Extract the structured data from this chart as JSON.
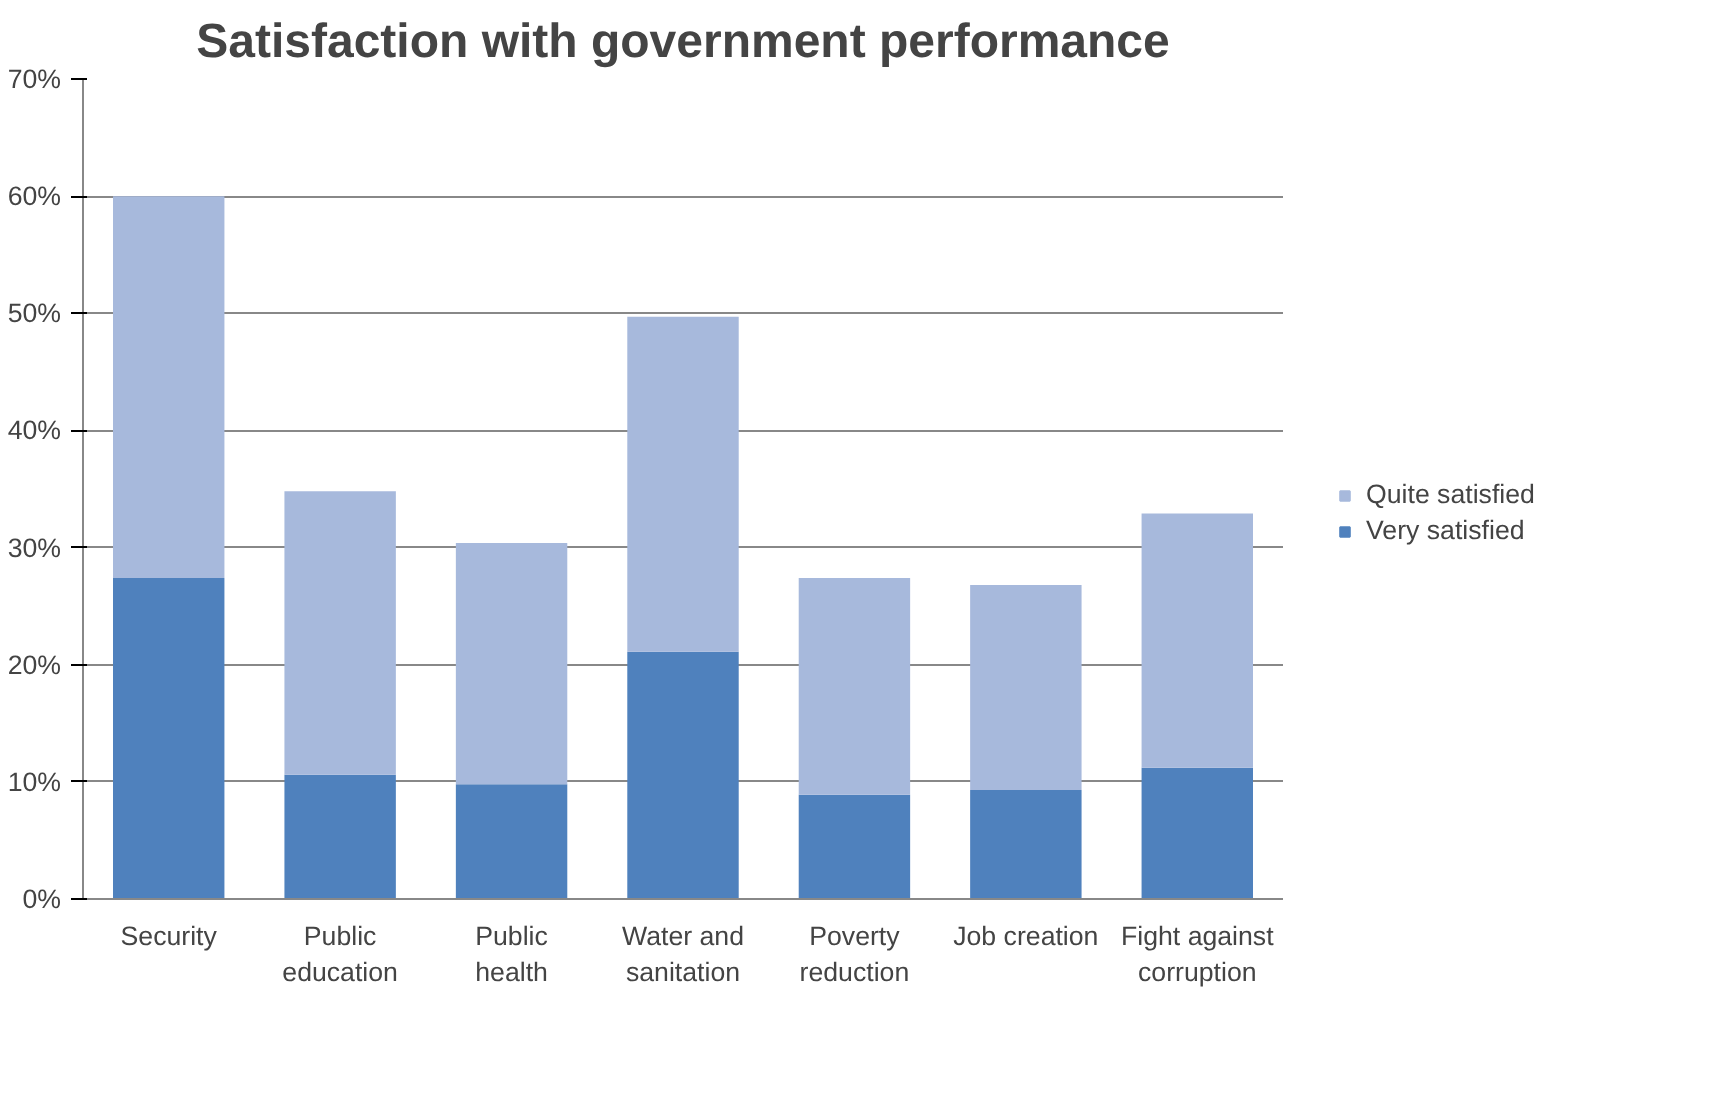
{
  "chart_data": {
    "type": "bar",
    "stacked": true,
    "title": "Satisfaction with government performance",
    "categories": [
      "Security",
      "Public education",
      "Public health",
      "Water and sanitation",
      "Poverty reduction",
      "Job creation",
      "Fight against corruption"
    ],
    "series": [
      {
        "name": "Very satisfied",
        "color": "#4f81bd",
        "values": [
          27.4,
          10.6,
          9.8,
          21.1,
          8.9,
          9.3,
          11.2
        ]
      },
      {
        "name": "Quite satisfied",
        "color": "#a7b9dc",
        "values": [
          32.6,
          24.2,
          20.6,
          28.6,
          18.5,
          17.5,
          21.7
        ]
      }
    ],
    "ylim": [
      0,
      70
    ],
    "yticks": [
      {
        "value": 0,
        "label": "0%"
      },
      {
        "value": 10,
        "label": "10%"
      },
      {
        "value": 20,
        "label": "20%"
      },
      {
        "value": 30,
        "label": "30%"
      },
      {
        "value": 40,
        "label": "40%"
      },
      {
        "value": 50,
        "label": "50%"
      },
      {
        "value": 60,
        "label": "60%"
      },
      {
        "value": 70,
        "label": "70%"
      }
    ],
    "grid": "y",
    "legend": "right"
  }
}
